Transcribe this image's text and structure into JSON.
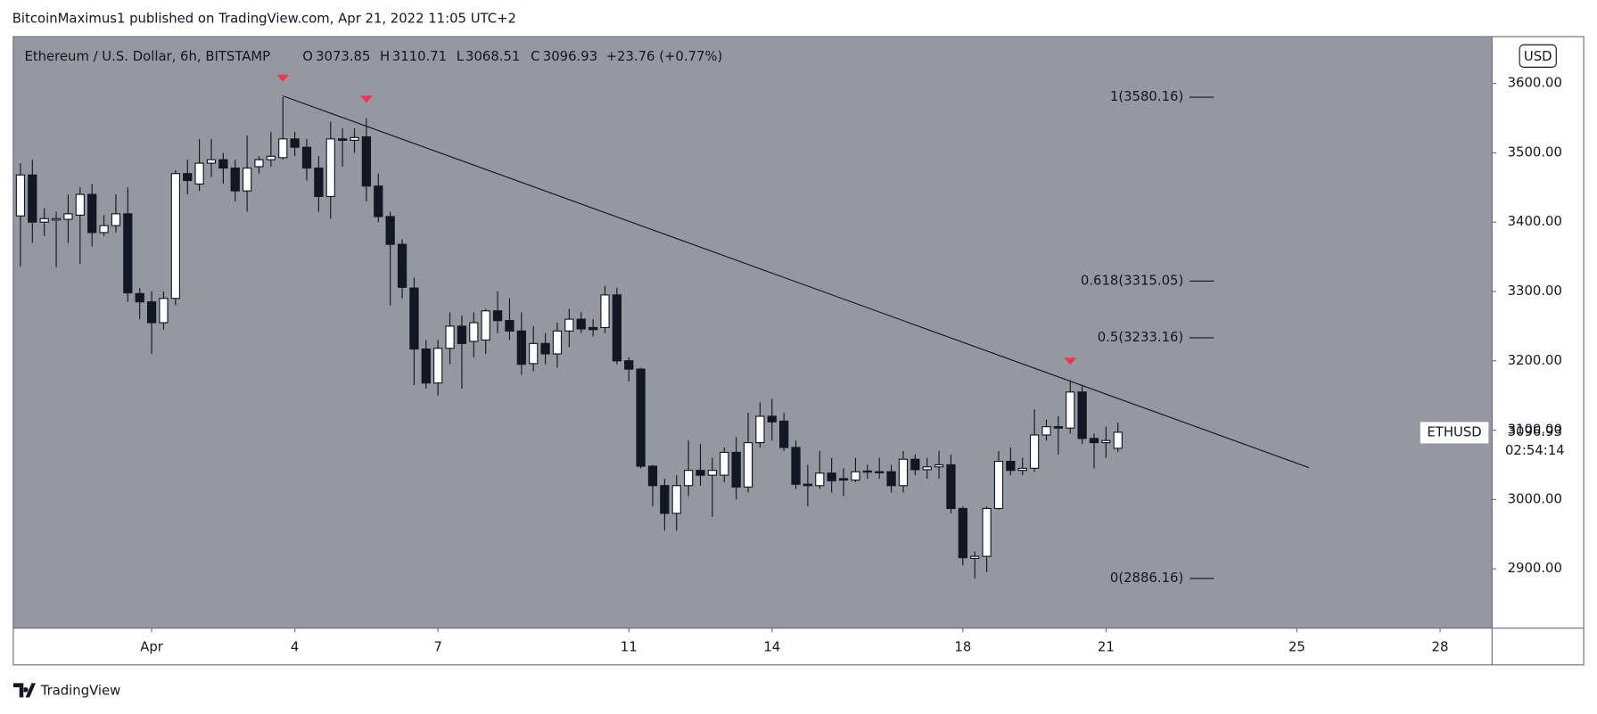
{
  "header": "BitcoinMaximus1 published on TradingView.com, Apr 21, 2022 11:05 UTC+2",
  "brand": "TradingView",
  "chart_data": {
    "type": "candlestick",
    "title": "Ethereum / U.S. Dollar, 6h, BITSTAMP",
    "ohlc_labels": [
      "O",
      "H",
      "L",
      "C"
    ],
    "change": "+23.76 (+0.77%)",
    "currency": "USD",
    "symbol": "ETHUSD",
    "countdown": "02:54:14",
    "up_color": "#ffffff",
    "down_color": "#131722",
    "background": "#9598a1",
    "x": [
      -1.75,
      -1.5,
      -1.25,
      -1,
      -0.75,
      -0.5,
      -0.25,
      0,
      0.25,
      0.5,
      0.75,
      1,
      1.25,
      1.5,
      1.75,
      2,
      2.25,
      2.5,
      2.75,
      3,
      3.25,
      3.5,
      3.75,
      4,
      4.25,
      4.5,
      4.75,
      5,
      5.25,
      5.5,
      5.75,
      6,
      6.25,
      6.5,
      6.75,
      7,
      7.25,
      7.5,
      7.75,
      8,
      8.25,
      8.5,
      8.75,
      9,
      9.25,
      9.5,
      9.75,
      10,
      10.25,
      10.5,
      10.75,
      11,
      11.25,
      11.5,
      11.75,
      12,
      12.25,
      12.5,
      12.75,
      13,
      13.25,
      13.5,
      13.75,
      14,
      14.25,
      14.5,
      14.75,
      15,
      15.25,
      15.5,
      15.75,
      16,
      16.25,
      16.5,
      16.75,
      17,
      17.25,
      17.5,
      17.75,
      18,
      18.25,
      18.5,
      18.75,
      19,
      19.25,
      19.5,
      19.75,
      20,
      20.25,
      20.5,
      20.75,
      21,
      21.25
    ],
    "open": [
      3409,
      3468,
      3400,
      3403,
      3404,
      3410,
      3440,
      3385,
      3395,
      3412,
      3297,
      3285,
      3255,
      3290,
      3470,
      3455,
      3485,
      3490,
      3478,
      3445,
      3480,
      3490,
      3493,
      3520,
      3508,
      3478,
      3437,
      3520,
      3518,
      3523,
      3452,
      3408,
      3368,
      3305,
      3217,
      3168,
      3218,
      3250,
      3228,
      3230,
      3272,
      3258,
      3243,
      3196,
      3225,
      3210,
      3243,
      3260,
      3248,
      3248,
      3295,
      3200,
      3188,
      3048,
      3020,
      2980,
      3020,
      3042,
      3035,
      3035,
      3068,
      3018,
      3082,
      3120,
      3113,
      3075,
      3022,
      3020,
      3038,
      3030,
      3028,
      3040,
      3040,
      3040,
      3020,
      3058,
      3043,
      3047,
      3050,
      2987,
      2915,
      2918,
      2987,
      3055,
      3042,
      3045,
      3093,
      3105,
      3103,
      3155,
      3088,
      3082,
      3073.85
    ],
    "high": [
      3485,
      3490,
      3420,
      3415,
      3440,
      3450,
      3455,
      3410,
      3440,
      3450,
      3305,
      3300,
      3300,
      3475,
      3490,
      3520,
      3520,
      3500,
      3490,
      3525,
      3495,
      3530,
      3580.16,
      3530,
      3520,
      3495,
      3545,
      3535,
      3535,
      3550,
      3470,
      3415,
      3375,
      3320,
      3230,
      3230,
      3270,
      3265,
      3270,
      3275,
      3300,
      3290,
      3270,
      3250,
      3240,
      3255,
      3275,
      3270,
      3260,
      3308,
      3305,
      3205,
      3190,
      3050,
      3030,
      3035,
      3085,
      3080,
      3060,
      3075,
      3090,
      3125,
      3140,
      3145,
      3125,
      3085,
      3050,
      3070,
      3060,
      3045,
      3060,
      3050,
      3060,
      3050,
      3070,
      3065,
      3060,
      3070,
      3065,
      2990,
      2925,
      2990,
      3070,
      3075,
      3060,
      3130,
      3115,
      3120,
      3172,
      3165,
      3095,
      3105,
      3110.71
    ],
    "low": [
      3336,
      3370,
      3380,
      3335,
      3370,
      3340,
      3365,
      3380,
      3385,
      3285,
      3260,
      3210,
      3245,
      3280,
      3440,
      3445,
      3465,
      3455,
      3430,
      3415,
      3470,
      3480,
      3490,
      3495,
      3460,
      3415,
      3405,
      3480,
      3500,
      3430,
      3400,
      3280,
      3290,
      3165,
      3160,
      3150,
      3195,
      3160,
      3205,
      3210,
      3240,
      3230,
      3180,
      3185,
      3195,
      3190,
      3220,
      3240,
      3235,
      3240,
      3195,
      3170,
      3045,
      2990,
      2955,
      2955,
      3005,
      3020,
      2975,
      3025,
      3000,
      3010,
      3075,
      3085,
      3070,
      3015,
      2990,
      3015,
      3010,
      3005,
      3025,
      3030,
      3030,
      3010,
      3010,
      3035,
      3030,
      3030,
      2980,
      2905,
      2886.16,
      2895,
      2985,
      3035,
      3035,
      3040,
      3085,
      3065,
      3095,
      3080,
      3045,
      3060,
      3068.51
    ],
    "close": [
      3468,
      3400,
      3405,
      3405,
      3412,
      3440,
      3385,
      3395,
      3412,
      3298,
      3285,
      3255,
      3290,
      3470,
      3460,
      3485,
      3490,
      3478,
      3445,
      3478,
      3490,
      3495,
      3520,
      3508,
      3478,
      3437,
      3520,
      3518,
      3522,
      3452,
      3408,
      3368,
      3306,
      3217,
      3168,
      3218,
      3250,
      3225,
      3255,
      3272,
      3258,
      3243,
      3195,
      3225,
      3210,
      3243,
      3260,
      3246,
      3245,
      3295,
      3200,
      3188,
      3048,
      3020,
      2980,
      3020,
      3042,
      3035,
      3042,
      3068,
      3018,
      3082,
      3120,
      3112,
      3075,
      3022,
      3020,
      3038,
      3027,
      3028,
      3040,
      3041,
      3039,
      3020,
      3058,
      3043,
      3047,
      3050,
      2987,
      2916,
      2918,
      2987,
      3055,
      3042,
      3045,
      3093,
      3105,
      3103,
      3155,
      3088,
      3082,
      3085,
      3096.93
    ],
    "xlim": [
      -1.9,
      29.09
    ],
    "xticks": [
      {
        "value": 1,
        "label": "Apr"
      },
      4,
      7,
      11,
      14,
      18,
      21,
      25,
      28
    ],
    "ylim": [
      2814.4,
      3667.5
    ],
    "yticks": [
      {
        "value": 2900,
        "label": "2900.00"
      },
      {
        "value": 3000,
        "label": "3000.00"
      },
      {
        "value": 3100,
        "label": "3100.00"
      },
      {
        "value": 3200,
        "label": "3200.00"
      },
      {
        "value": 3300,
        "label": "3300.00"
      },
      {
        "value": 3400,
        "label": "3400.00"
      },
      {
        "value": 3500,
        "label": "3500.00"
      },
      {
        "value": 3600,
        "label": "3600.00"
      }
    ],
    "fib_levels": [
      {
        "value": 3580.16,
        "label": "1(3580.16)"
      },
      {
        "value": 3315.05,
        "label": "0.618(3315.05)"
      },
      {
        "value": 3233.16,
        "label": "0.5(3233.16)"
      },
      {
        "value": 2886.16,
        "label": "0(2886.16)"
      }
    ],
    "trendline": {
      "x": [
        3.75,
        25.25
      ],
      "y": [
        3582,
        3046
      ],
      "color": "#131722"
    },
    "markers": {
      "x": [
        3.75,
        5.5,
        20.25
      ],
      "color": "#f23645"
    }
  }
}
